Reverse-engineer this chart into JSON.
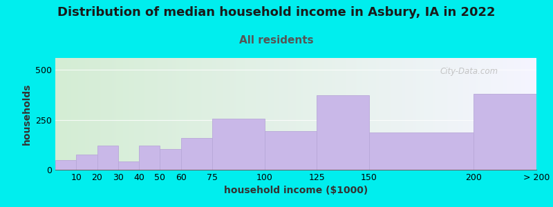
{
  "title": "Distribution of median household income in Asbury, IA in 2022",
  "subtitle": "All residents",
  "xlabel": "household income ($1000)",
  "ylabel": "households",
  "background_color": "#00EEEE",
  "plot_bg_gradient_left": "#d4edd4",
  "plot_bg_gradient_right": "#f5f5ff",
  "bar_color": "#c9b8e8",
  "bar_edge_color": "#b8a8d8",
  "bin_edges": [
    0,
    10,
    20,
    30,
    40,
    50,
    60,
    75,
    100,
    125,
    150,
    200,
    230
  ],
  "bin_labels": [
    "10",
    "20",
    "30",
    "40",
    "50",
    "60",
    "75",
    "100",
    "125",
    "150",
    "200",
    "> 200"
  ],
  "values": [
    50,
    75,
    120,
    40,
    120,
    105,
    160,
    255,
    195,
    375,
    185,
    380
  ],
  "ylim": [
    0,
    560
  ],
  "yticks": [
    0,
    250,
    500
  ],
  "watermark": "City-Data.com",
  "title_fontsize": 13,
  "subtitle_fontsize": 11,
  "axis_label_fontsize": 10,
  "tick_fontsize": 9
}
